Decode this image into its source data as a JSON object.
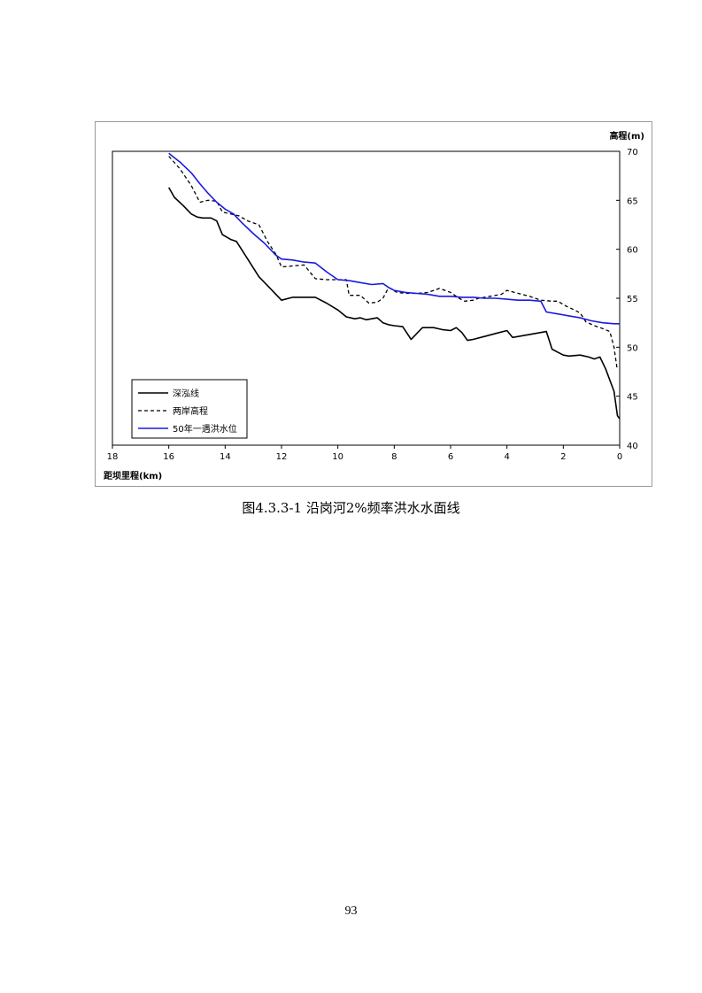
{
  "caption": "图4.3.3-1  沿岗河2%频率洪水水面线",
  "page_number": "93",
  "chart_data": {
    "type": "line",
    "title": "",
    "xlabel": "距坝里程(km)",
    "ylabel": "高程(m)",
    "x_reversed": true,
    "xlim": [
      18,
      0
    ],
    "ylim": [
      40,
      70
    ],
    "x_ticks": [
      18,
      16,
      14,
      12,
      10,
      8,
      6,
      4,
      2,
      0
    ],
    "y_ticks": [
      40,
      45,
      50,
      55,
      60,
      65,
      70
    ],
    "grid": false,
    "legend_position": "bottom-left",
    "series": [
      {
        "name": "深泓线",
        "color": "#000000",
        "dash": "solid",
        "points": [
          [
            16,
            66.3
          ],
          [
            15.8,
            65.3
          ],
          [
            15.5,
            64.5
          ],
          [
            15.2,
            63.6
          ],
          [
            15,
            63.3
          ],
          [
            14.8,
            63.2
          ],
          [
            14.5,
            63.2
          ],
          [
            14.3,
            62.9
          ],
          [
            14.1,
            61.5
          ],
          [
            13.8,
            61.0
          ],
          [
            13.6,
            60.8
          ],
          [
            13.2,
            59.0
          ],
          [
            12.8,
            57.2
          ],
          [
            12.4,
            56.0
          ],
          [
            12,
            54.8
          ],
          [
            11.6,
            55.1
          ],
          [
            11.2,
            55.1
          ],
          [
            10.8,
            55.1
          ],
          [
            10.4,
            54.5
          ],
          [
            10,
            53.8
          ],
          [
            9.7,
            53.1
          ],
          [
            9.4,
            52.9
          ],
          [
            9.2,
            53.0
          ],
          [
            9,
            52.8
          ],
          [
            8.8,
            52.9
          ],
          [
            8.6,
            53.0
          ],
          [
            8.4,
            52.5
          ],
          [
            8.2,
            52.3
          ],
          [
            8,
            52.2
          ],
          [
            7.7,
            52.1
          ],
          [
            7.4,
            50.8
          ],
          [
            7,
            52.0
          ],
          [
            6.6,
            52.0
          ],
          [
            6.3,
            51.8
          ],
          [
            6,
            51.7
          ],
          [
            5.8,
            52.0
          ],
          [
            5.6,
            51.5
          ],
          [
            5.4,
            50.7
          ],
          [
            5.2,
            50.8
          ],
          [
            4.8,
            51.1
          ],
          [
            4.4,
            51.4
          ],
          [
            4,
            51.7
          ],
          [
            3.8,
            51.0
          ],
          [
            3.4,
            51.2
          ],
          [
            3,
            51.4
          ],
          [
            2.6,
            51.6
          ],
          [
            2.4,
            49.8
          ],
          [
            2.2,
            49.5
          ],
          [
            2,
            49.2
          ],
          [
            1.8,
            49.1
          ],
          [
            1.4,
            49.2
          ],
          [
            1.1,
            49.0
          ],
          [
            0.9,
            48.8
          ],
          [
            0.7,
            49.0
          ],
          [
            0.5,
            47.8
          ],
          [
            0.2,
            45.5
          ],
          [
            0.08,
            43.0
          ],
          [
            0,
            42.7
          ]
        ]
      },
      {
        "name": "两岸高程",
        "color": "#000000",
        "dash": "dashed",
        "points": [
          [
            16,
            69.5
          ],
          [
            15.6,
            68.2
          ],
          [
            15.2,
            66.5
          ],
          [
            14.9,
            64.8
          ],
          [
            14.6,
            65.0
          ],
          [
            14.3,
            64.9
          ],
          [
            14.1,
            63.8
          ],
          [
            13.8,
            63.6
          ],
          [
            13.5,
            63.4
          ],
          [
            13.2,
            62.9
          ],
          [
            12.8,
            62.5
          ],
          [
            12.5,
            60.8
          ],
          [
            12.2,
            59.5
          ],
          [
            12,
            58.2
          ],
          [
            11.6,
            58.3
          ],
          [
            11.2,
            58.4
          ],
          [
            10.8,
            57.0
          ],
          [
            10.4,
            56.9
          ],
          [
            10,
            56.9
          ],
          [
            9.7,
            56.9
          ],
          [
            9.6,
            55.3
          ],
          [
            9.2,
            55.3
          ],
          [
            8.9,
            54.5
          ],
          [
            8.6,
            54.6
          ],
          [
            8.4,
            55.0
          ],
          [
            8.2,
            56.1
          ],
          [
            7.9,
            55.6
          ],
          [
            7.6,
            55.5
          ],
          [
            7.2,
            55.5
          ],
          [
            6.8,
            55.6
          ],
          [
            6.4,
            56.0
          ],
          [
            6,
            55.6
          ],
          [
            5.7,
            55.0
          ],
          [
            5.5,
            54.7
          ],
          [
            5.2,
            54.8
          ],
          [
            5,
            55.0
          ],
          [
            4.6,
            55.2
          ],
          [
            4.2,
            55.4
          ],
          [
            4,
            55.8
          ],
          [
            3.6,
            55.5
          ],
          [
            3.2,
            55.2
          ],
          [
            2.8,
            54.8
          ],
          [
            2.4,
            54.7
          ],
          [
            2.2,
            54.7
          ],
          [
            1.9,
            54.2
          ],
          [
            1.6,
            53.8
          ],
          [
            1.4,
            53.5
          ],
          [
            1.2,
            52.6
          ],
          [
            0.9,
            52.2
          ],
          [
            0.6,
            51.9
          ],
          [
            0.35,
            51.6
          ],
          [
            0.2,
            50.0
          ],
          [
            0.1,
            48.0
          ],
          [
            0,
            47.9
          ]
        ]
      },
      {
        "name": "50年一遇洪水位",
        "color": "#1a1ae0",
        "dash": "solid",
        "points": [
          [
            16,
            69.8
          ],
          [
            15.6,
            68.9
          ],
          [
            15.2,
            67.8
          ],
          [
            14.9,
            66.7
          ],
          [
            14.6,
            65.7
          ],
          [
            14.3,
            64.8
          ],
          [
            14,
            64.1
          ],
          [
            13.7,
            63.6
          ],
          [
            13.4,
            62.7
          ],
          [
            13,
            61.6
          ],
          [
            12.6,
            60.6
          ],
          [
            12.2,
            59.4
          ],
          [
            12,
            59.0
          ],
          [
            11.6,
            58.9
          ],
          [
            11.2,
            58.7
          ],
          [
            10.8,
            58.6
          ],
          [
            10.4,
            57.7
          ],
          [
            10,
            56.9
          ],
          [
            9.6,
            56.8
          ],
          [
            9.2,
            56.6
          ],
          [
            8.8,
            56.4
          ],
          [
            8.4,
            56.5
          ],
          [
            8.2,
            56.1
          ],
          [
            8,
            55.8
          ],
          [
            7.6,
            55.6
          ],
          [
            7.2,
            55.5
          ],
          [
            6.8,
            55.4
          ],
          [
            6.4,
            55.2
          ],
          [
            6,
            55.2
          ],
          [
            5.6,
            55.1
          ],
          [
            5.2,
            55.1
          ],
          [
            4.8,
            55.0
          ],
          [
            4.4,
            55.0
          ],
          [
            4,
            54.9
          ],
          [
            3.6,
            54.8
          ],
          [
            3.2,
            54.8
          ],
          [
            2.8,
            54.7
          ],
          [
            2.6,
            53.6
          ],
          [
            2.2,
            53.4
          ],
          [
            1.8,
            53.2
          ],
          [
            1.4,
            53.0
          ],
          [
            1,
            52.7
          ],
          [
            0.6,
            52.5
          ],
          [
            0.2,
            52.4
          ],
          [
            0,
            52.4
          ]
        ]
      }
    ]
  }
}
